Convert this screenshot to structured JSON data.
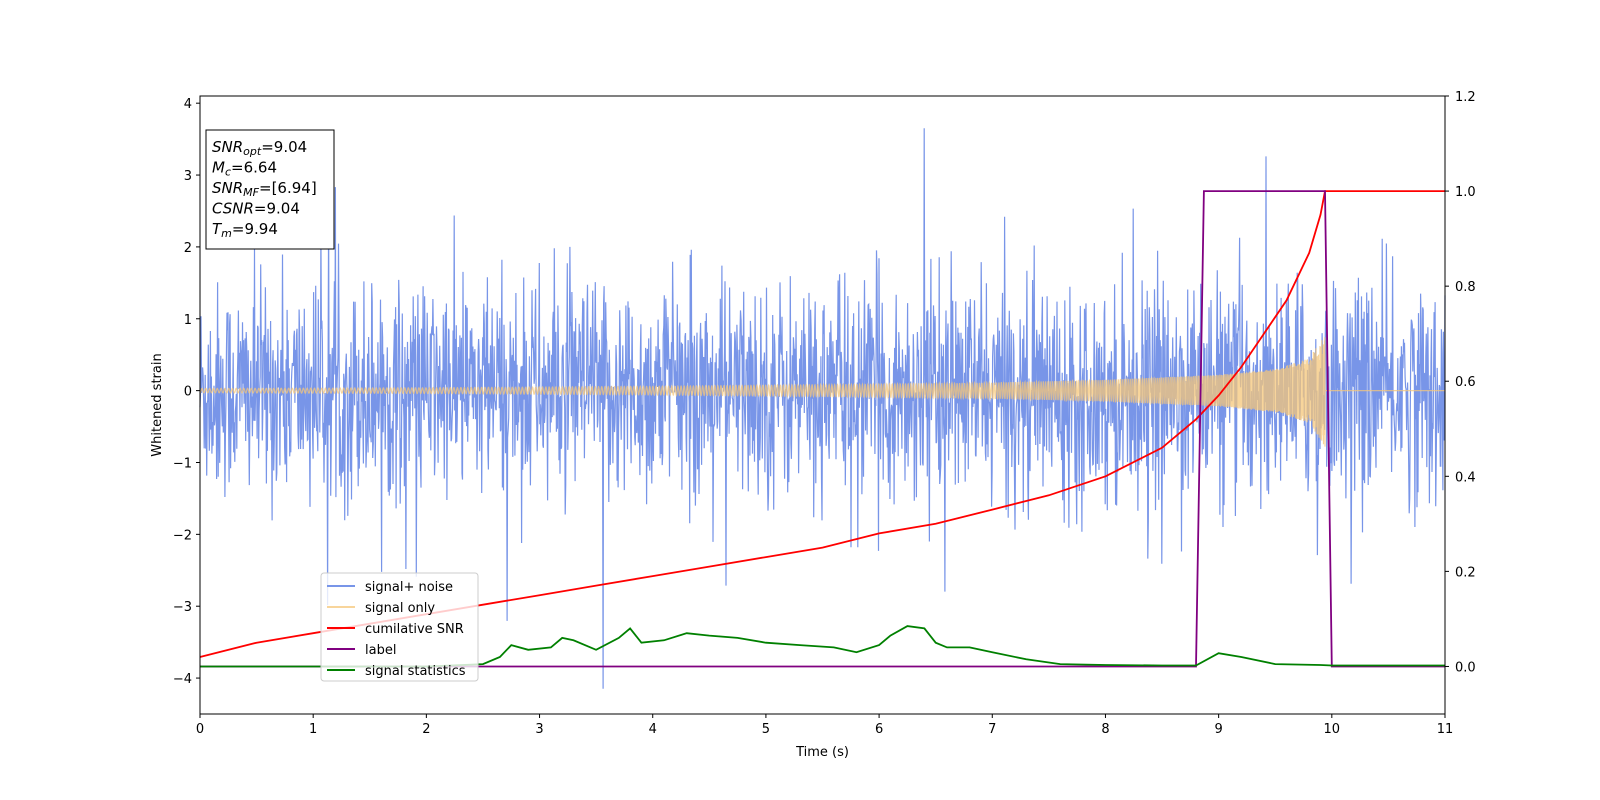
{
  "chart_data": {
    "type": "line",
    "xlabel": "Time (s)",
    "ylabel": "Whitened strain",
    "xlim": [
      0,
      11
    ],
    "ylim": [
      -4.5,
      4.1
    ],
    "y2lim": [
      -0.1,
      1.2
    ],
    "x_ticks": [
      0,
      1,
      2,
      3,
      4,
      5,
      6,
      7,
      8,
      9,
      10,
      11
    ],
    "y_ticks": [
      -4,
      -3,
      -2,
      -1,
      0,
      1,
      2,
      3,
      4
    ],
    "y_tick_labels": [
      "−4",
      "−3",
      "−2",
      "−1",
      "0",
      "1",
      "2",
      "3",
      "4"
    ],
    "y2_ticks": [
      0.0,
      0.2,
      0.4,
      0.6,
      0.8,
      1.0,
      1.2
    ],
    "y2_tick_labels": [
      "0.0",
      "0.2",
      "0.4",
      "0.6",
      "0.8",
      "1.0",
      "1.2"
    ],
    "grid": false,
    "legend_placement": "lower-left",
    "annotation": {
      "snr_opt": {
        "symbol": "SNR",
        "sub": "opt",
        "value": "=9.04"
      },
      "mc": {
        "symbol": "M",
        "sub": "c",
        "value": "=6.64"
      },
      "snr_mf": {
        "symbol": "SNR",
        "sub": "MF",
        "value": "=[6.94]"
      },
      "csnr": {
        "symbol": "CSNR",
        "value": "=9.04"
      },
      "tm": {
        "symbol": "T",
        "sub": "m",
        "value": "=9.94"
      }
    },
    "series": [
      {
        "name": "signal+ noise",
        "axis": "left",
        "color": "#7895e8",
        "kind": "noise",
        "x_range": [
          0,
          11
        ],
        "amplitude_typical": 1.2,
        "amplitude_peak": 3.65,
        "min_value": -4.15
      },
      {
        "name": "signal only",
        "axis": "left",
        "color": "#f5c77a",
        "kind": "chirp",
        "x_range": [
          0,
          9.94
        ],
        "envelope": [
          [
            0,
            0.03
          ],
          [
            2,
            0.04
          ],
          [
            4,
            0.06
          ],
          [
            6,
            0.09
          ],
          [
            7,
            0.11
          ],
          [
            8,
            0.15
          ],
          [
            9,
            0.22
          ],
          [
            9.5,
            0.3
          ],
          [
            9.8,
            0.45
          ],
          [
            9.94,
            0.78
          ]
        ],
        "after_merger_value": 0.0
      },
      {
        "name": "cumilative SNR",
        "axis": "right",
        "color": "#ff0000",
        "x": [
          0,
          0.5,
          1,
          1.5,
          2,
          2.5,
          3,
          3.5,
          4,
          4.5,
          5,
          5.5,
          6,
          6.5,
          7,
          7.5,
          8,
          8.5,
          8.8,
          9,
          9.2,
          9.4,
          9.6,
          9.8,
          9.9,
          9.94,
          11
        ],
        "values": [
          0.02,
          0.05,
          0.07,
          0.09,
          0.11,
          0.13,
          0.15,
          0.17,
          0.19,
          0.21,
          0.23,
          0.25,
          0.28,
          0.3,
          0.33,
          0.36,
          0.4,
          0.46,
          0.52,
          0.57,
          0.63,
          0.7,
          0.77,
          0.87,
          0.95,
          1.0,
          1.0
        ]
      },
      {
        "name": "label",
        "axis": "right",
        "color": "#800080",
        "x": [
          0,
          8.8,
          8.87,
          9.94,
          10.0,
          11
        ],
        "values": [
          0.0,
          0.0,
          1.0,
          1.0,
          0.0,
          0.0
        ]
      },
      {
        "name": "signal statistics",
        "axis": "right",
        "color": "#008000",
        "x": [
          0,
          1,
          2,
          2.5,
          2.65,
          2.75,
          2.9,
          3.1,
          3.2,
          3.3,
          3.5,
          3.7,
          3.8,
          3.9,
          4.1,
          4.3,
          4.5,
          4.75,
          5.0,
          5.3,
          5.6,
          5.8,
          6.0,
          6.1,
          6.25,
          6.4,
          6.5,
          6.6,
          6.8,
          7.0,
          7.3,
          7.6,
          8.0,
          8.5,
          8.8,
          9.0,
          9.2,
          9.5,
          9.9,
          10.0,
          11
        ],
        "values": [
          0.0,
          0.0,
          0.0,
          0.005,
          0.02,
          0.045,
          0.035,
          0.04,
          0.06,
          0.055,
          0.035,
          0.06,
          0.08,
          0.05,
          0.055,
          0.07,
          0.065,
          0.06,
          0.05,
          0.045,
          0.04,
          0.03,
          0.045,
          0.065,
          0.085,
          0.08,
          0.05,
          0.04,
          0.04,
          0.03,
          0.015,
          0.005,
          0.003,
          0.002,
          0.002,
          0.028,
          0.02,
          0.005,
          0.003,
          0.002,
          0.002
        ]
      }
    ]
  }
}
